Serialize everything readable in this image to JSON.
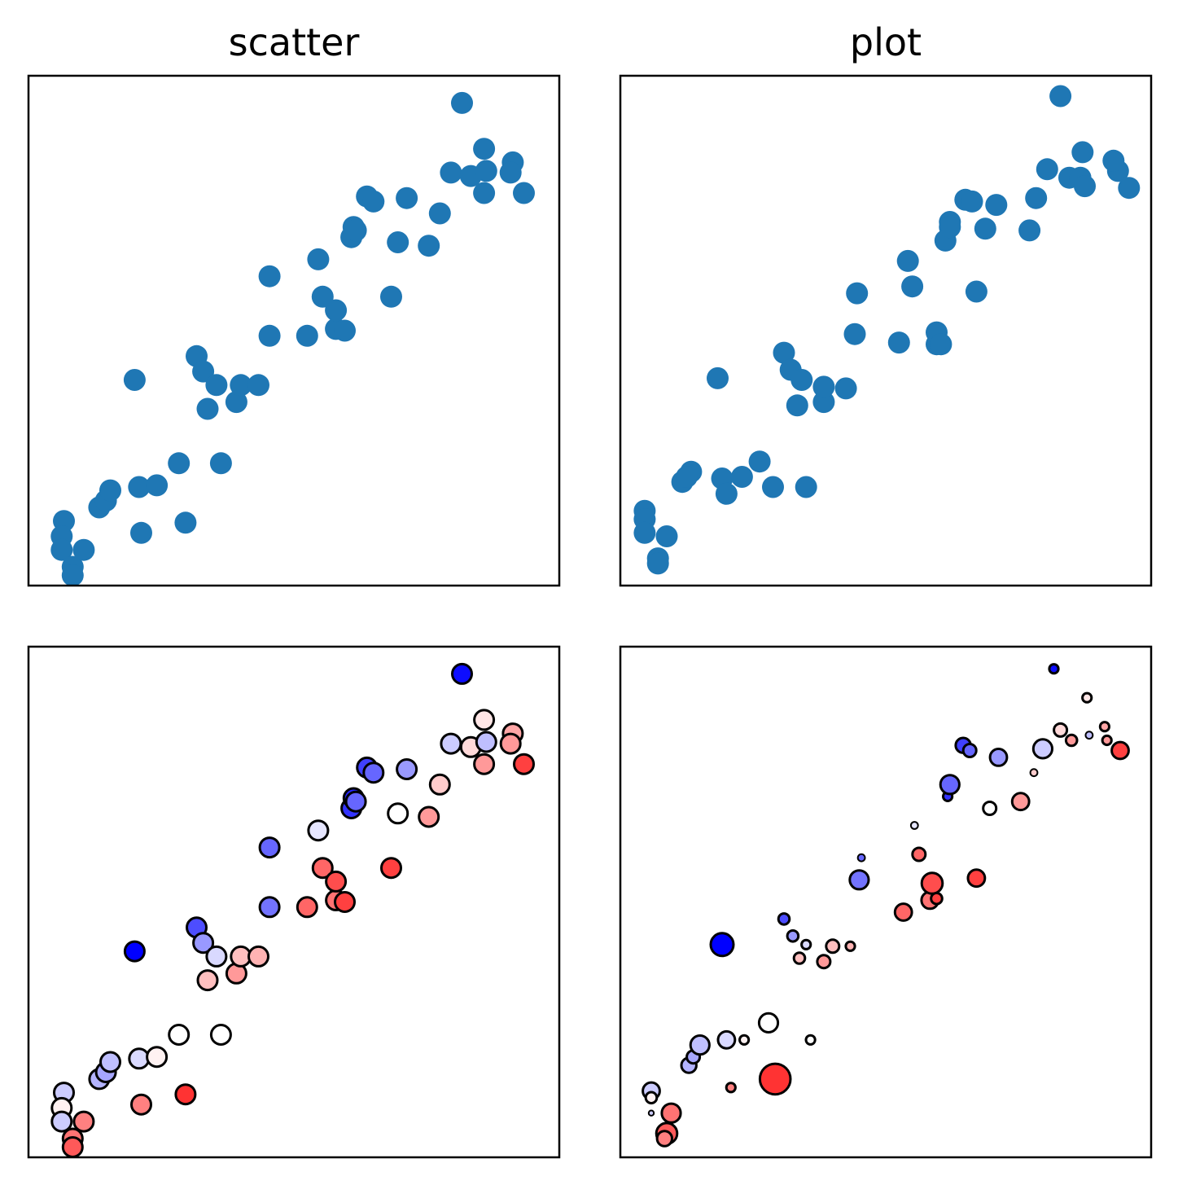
{
  "titles": {
    "left": "scatter",
    "right": "plot"
  },
  "colors": {
    "default_marker": "#1f77b4",
    "edge": "#000000",
    "cmap": "bwr"
  },
  "chart_data": [
    {
      "type": "scatter",
      "title": "scatter",
      "ticks": "hidden",
      "xlim": [
        0,
        24
      ],
      "ylim": [
        0,
        30
      ],
      "points": [
        [
          1.6,
          3.8
        ],
        [
          1.5,
          2.9
        ],
        [
          1.5,
          2.1
        ],
        [
          2.0,
          1.1
        ],
        [
          2.0,
          0.6
        ],
        [
          2.5,
          2.1
        ],
        [
          3.2,
          4.6
        ],
        [
          3.5,
          5.0
        ],
        [
          3.7,
          5.6
        ],
        [
          4.8,
          12.1
        ],
        [
          5.0,
          5.8
        ],
        [
          5.1,
          3.1
        ],
        [
          5.8,
          5.9
        ],
        [
          6.8,
          7.2
        ],
        [
          7.1,
          3.7
        ],
        [
          7.6,
          13.5
        ],
        [
          7.9,
          12.6
        ],
        [
          8.1,
          10.4
        ],
        [
          8.5,
          11.8
        ],
        [
          8.7,
          7.2
        ],
        [
          9.4,
          10.8
        ],
        [
          9.6,
          11.8
        ],
        [
          10.4,
          11.8
        ],
        [
          10.9,
          14.7
        ],
        [
          10.9,
          18.2
        ],
        [
          12.6,
          14.7
        ],
        [
          13.1,
          19.2
        ],
        [
          13.3,
          17.0
        ],
        [
          13.9,
          15.1
        ],
        [
          13.9,
          16.2
        ],
        [
          14.3,
          15.0
        ],
        [
          14.6,
          20.5
        ],
        [
          14.7,
          21.1
        ],
        [
          14.8,
          20.9
        ],
        [
          15.3,
          22.9
        ],
        [
          15.6,
          22.6
        ],
        [
          16.4,
          17.0
        ],
        [
          16.7,
          20.2
        ],
        [
          17.1,
          22.8
        ],
        [
          18.1,
          20.0
        ],
        [
          18.6,
          21.9
        ],
        [
          19.1,
          24.3
        ],
        [
          19.6,
          28.4
        ],
        [
          20.0,
          24.1
        ],
        [
          20.6,
          23.1
        ],
        [
          20.7,
          24.4
        ],
        [
          20.6,
          25.7
        ],
        [
          21.9,
          24.9
        ],
        [
          21.8,
          24.3
        ],
        [
          22.4,
          23.1
        ]
      ],
      "colors": [
        -0.2,
        0.05,
        -0.2,
        0.55,
        0.65,
        0.5,
        -0.3,
        -0.35,
        -0.25,
        -1.0,
        -0.15,
        0.5,
        0.05,
        0.0,
        0.8,
        -0.7,
        -0.4,
        0.25,
        -0.15,
        0.0,
        0.4,
        0.25,
        0.3,
        -0.55,
        -0.6,
        0.6,
        -0.1,
        0.6,
        0.55,
        0.7,
        0.75,
        -0.8,
        -0.85,
        -0.6,
        -0.75,
        -0.6,
        0.75,
        0.0,
        -0.4,
        0.4,
        0.2,
        -0.2,
        -0.95,
        0.15,
        0.4,
        -0.25,
        0.1,
        0.35,
        0.4,
        0.75
      ]
    },
    {
      "type": "scatter",
      "title": "plot",
      "ticks": "hidden",
      "xlim": [
        0,
        24
      ],
      "ylim": [
        0,
        30
      ],
      "points": [
        [
          1.1,
          4.4
        ],
        [
          1.1,
          3.9
        ],
        [
          1.1,
          3.1
        ],
        [
          2.1,
          2.9
        ],
        [
          1.7,
          1.6
        ],
        [
          1.7,
          1.3
        ],
        [
          2.8,
          6.1
        ],
        [
          3.2,
          6.7
        ],
        [
          3.0,
          6.4
        ],
        [
          4.4,
          12.2
        ],
        [
          4.6,
          6.3
        ],
        [
          4.8,
          5.4
        ],
        [
          5.5,
          6.4
        ],
        [
          6.3,
          7.3
        ],
        [
          6.9,
          5.8
        ],
        [
          7.4,
          13.7
        ],
        [
          7.7,
          12.7
        ],
        [
          8.0,
          10.6
        ],
        [
          8.2,
          12.1
        ],
        [
          8.4,
          5.8
        ],
        [
          9.2,
          10.8
        ],
        [
          9.2,
          11.7
        ],
        [
          10.2,
          11.6
        ],
        [
          10.6,
          14.8
        ],
        [
          10.7,
          17.2
        ],
        [
          12.6,
          14.3
        ],
        [
          13.0,
          19.1
        ],
        [
          13.2,
          17.6
        ],
        [
          14.3,
          14.2
        ],
        [
          14.3,
          14.9
        ],
        [
          14.5,
          14.2
        ],
        [
          14.7,
          20.3
        ],
        [
          14.9,
          21.4
        ],
        [
          14.9,
          21.1
        ],
        [
          15.6,
          22.7
        ],
        [
          15.9,
          22.6
        ],
        [
          16.1,
          17.3
        ],
        [
          16.5,
          21.0
        ],
        [
          17.0,
          22.4
        ],
        [
          18.5,
          20.9
        ],
        [
          18.8,
          22.8
        ],
        [
          19.3,
          24.5
        ],
        [
          19.9,
          28.8
        ],
        [
          20.3,
          24.0
        ],
        [
          20.8,
          24.0
        ],
        [
          21.0,
          23.5
        ],
        [
          20.9,
          25.5
        ],
        [
          22.5,
          24.4
        ],
        [
          22.3,
          25.0
        ],
        [
          23.0,
          23.4
        ]
      ],
      "colors": [
        -0.2,
        0.05,
        -0.2,
        0.55,
        0.65,
        0.5,
        -0.3,
        -0.35,
        -0.25,
        -1.0,
        -0.15,
        0.5,
        0.05,
        0.0,
        0.8,
        -0.7,
        -0.4,
        0.25,
        -0.15,
        0.0,
        0.4,
        0.25,
        0.3,
        -0.55,
        -0.6,
        0.6,
        -0.1,
        0.6,
        0.55,
        0.7,
        0.75,
        -0.8,
        -0.85,
        -0.6,
        -0.75,
        -0.6,
        0.75,
        0.0,
        -0.4,
        0.4,
        0.2,
        -0.2,
        -0.95,
        0.15,
        0.4,
        -0.25,
        0.1,
        0.35,
        0.4,
        0.75
      ]
    },
    {
      "type": "scatter",
      "title": "",
      "ticks": "hidden",
      "xlim": [
        0,
        24
      ],
      "ylim": [
        0,
        30
      ],
      "marker_edge": "black",
      "colormap": "bwr",
      "points": [
        [
          1.6,
          3.8
        ],
        [
          1.5,
          2.9
        ],
        [
          1.5,
          2.1
        ],
        [
          2.0,
          1.1
        ],
        [
          2.0,
          0.6
        ],
        [
          2.5,
          2.1
        ],
        [
          3.2,
          4.6
        ],
        [
          3.5,
          5.0
        ],
        [
          3.7,
          5.6
        ],
        [
          4.8,
          12.1
        ],
        [
          5.0,
          5.8
        ],
        [
          5.1,
          3.1
        ],
        [
          5.8,
          5.9
        ],
        [
          6.8,
          7.2
        ],
        [
          7.1,
          3.7
        ],
        [
          7.6,
          13.5
        ],
        [
          7.9,
          12.6
        ],
        [
          8.1,
          10.4
        ],
        [
          8.5,
          11.8
        ],
        [
          8.7,
          7.2
        ],
        [
          9.4,
          10.8
        ],
        [
          9.6,
          11.8
        ],
        [
          10.4,
          11.8
        ],
        [
          10.9,
          14.7
        ],
        [
          10.9,
          18.2
        ],
        [
          12.6,
          14.7
        ],
        [
          13.1,
          19.2
        ],
        [
          13.3,
          17.0
        ],
        [
          13.9,
          15.1
        ],
        [
          13.9,
          16.2
        ],
        [
          14.3,
          15.0
        ],
        [
          14.6,
          20.5
        ],
        [
          14.7,
          21.1
        ],
        [
          14.8,
          20.9
        ],
        [
          15.3,
          22.9
        ],
        [
          15.6,
          22.6
        ],
        [
          16.4,
          17.0
        ],
        [
          16.7,
          20.2
        ],
        [
          17.1,
          22.8
        ],
        [
          18.1,
          20.0
        ],
        [
          18.6,
          21.9
        ],
        [
          19.1,
          24.3
        ],
        [
          19.6,
          28.4
        ],
        [
          20.0,
          24.1
        ],
        [
          20.6,
          23.1
        ],
        [
          20.7,
          24.4
        ],
        [
          20.6,
          25.7
        ],
        [
          21.9,
          24.9
        ],
        [
          21.8,
          24.3
        ],
        [
          22.4,
          23.1
        ]
      ],
      "colors": [
        -0.2,
        0.05,
        -0.2,
        0.55,
        0.65,
        0.5,
        -0.3,
        -0.35,
        -0.25,
        -1.0,
        -0.15,
        0.5,
        0.05,
        0.0,
        0.8,
        -0.7,
        -0.4,
        0.25,
        -0.15,
        0.0,
        0.4,
        0.25,
        0.3,
        -0.55,
        -0.6,
        0.6,
        -0.1,
        0.6,
        0.55,
        0.7,
        0.75,
        -0.8,
        -0.85,
        -0.6,
        -0.75,
        -0.6,
        0.75,
        0.0,
        -0.4,
        0.4,
        0.2,
        -0.2,
        -0.95,
        0.15,
        0.4,
        -0.25,
        0.1,
        0.35,
        0.4,
        0.75
      ]
    },
    {
      "type": "scatter",
      "title": "",
      "ticks": "hidden",
      "xlim": [
        0,
        24
      ],
      "ylim": [
        0,
        30
      ],
      "marker_edge": "black",
      "colormap": "bwr",
      "variable_size": true,
      "points": [
        [
          1.4,
          3.9
        ],
        [
          1.4,
          3.5
        ],
        [
          1.4,
          2.6
        ],
        [
          2.3,
          2.6
        ],
        [
          2.1,
          1.4
        ],
        [
          2.0,
          1.1
        ],
        [
          3.1,
          5.4
        ],
        [
          3.3,
          5.9
        ],
        [
          3.6,
          6.6
        ],
        [
          4.6,
          12.5
        ],
        [
          4.8,
          6.9
        ],
        [
          5.0,
          4.1
        ],
        [
          5.6,
          6.9
        ],
        [
          6.7,
          7.9
        ],
        [
          7.0,
          4.6
        ],
        [
          7.4,
          14.0
        ],
        [
          7.8,
          13.0
        ],
        [
          8.1,
          11.7
        ],
        [
          8.4,
          12.5
        ],
        [
          8.6,
          6.9
        ],
        [
          9.2,
          11.5
        ],
        [
          9.6,
          12.4
        ],
        [
          10.4,
          12.4
        ],
        [
          10.8,
          16.3
        ],
        [
          10.9,
          17.6
        ],
        [
          12.8,
          14.4
        ],
        [
          13.3,
          19.5
        ],
        [
          13.5,
          17.8
        ],
        [
          14.0,
          15.1
        ],
        [
          14.1,
          16.1
        ],
        [
          14.3,
          15.2
        ],
        [
          14.8,
          21.2
        ],
        [
          14.8,
          21.8
        ],
        [
          14.9,
          21.9
        ],
        [
          15.5,
          24.2
        ],
        [
          15.8,
          23.9
        ],
        [
          16.1,
          16.4
        ],
        [
          16.7,
          20.5
        ],
        [
          17.1,
          23.5
        ],
        [
          18.1,
          20.9
        ],
        [
          18.7,
          22.6
        ],
        [
          19.1,
          24.0
        ],
        [
          19.6,
          28.7
        ],
        [
          19.9,
          25.1
        ],
        [
          20.4,
          24.5
        ],
        [
          21.2,
          24.8
        ],
        [
          21.1,
          27.0
        ],
        [
          21.9,
          25.3
        ],
        [
          22.0,
          24.5
        ],
        [
          22.6,
          23.9
        ]
      ],
      "colors": [
        -0.2,
        0.05,
        -0.2,
        0.55,
        0.65,
        0.5,
        -0.3,
        -0.35,
        -0.25,
        -1.0,
        -0.15,
        0.5,
        0.05,
        0.0,
        0.8,
        -0.7,
        -0.4,
        0.25,
        -0.15,
        0.0,
        0.4,
        0.25,
        0.3,
        -0.55,
        -0.6,
        0.6,
        -0.1,
        0.6,
        0.55,
        0.7,
        0.75,
        -0.8,
        -0.85,
        -0.6,
        -0.75,
        -0.6,
        0.75,
        0.0,
        -0.4,
        0.4,
        0.2,
        -0.2,
        -0.95,
        0.15,
        0.4,
        -0.25,
        0.1,
        0.35,
        0.4,
        0.75
      ],
      "sizes": [
        0.7,
        0.4,
        0.1,
        0.8,
        0.9,
        0.6,
        0.6,
        0.5,
        0.8,
        1.0,
        0.7,
        0.3,
        0.3,
        0.8,
        1.4,
        0.4,
        0.4,
        0.4,
        0.3,
        0.3,
        0.5,
        0.5,
        0.3,
        0.8,
        0.2,
        0.7,
        0.2,
        0.5,
        0.7,
        0.9,
        0.4,
        0.3,
        0.4,
        0.8,
        0.6,
        0.5,
        0.7,
        0.5,
        0.7,
        0.7,
        0.2,
        0.8,
        0.3,
        0.5,
        0.4,
        0.2,
        0.3,
        0.3,
        0.3,
        0.7
      ]
    }
  ]
}
